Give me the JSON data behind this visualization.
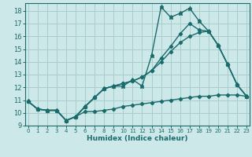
{
  "bg_color": "#cde8e8",
  "grid_color": "#a8cccc",
  "line_color": "#1a6b6b",
  "xlabel": "Humidex (Indice chaleur)",
  "xlim": [
    0,
    23
  ],
  "ylim": [
    9,
    18.6
  ],
  "yticks": [
    9,
    10,
    11,
    12,
    13,
    14,
    15,
    16,
    17,
    18
  ],
  "xticks": [
    0,
    1,
    2,
    3,
    4,
    5,
    6,
    7,
    8,
    9,
    10,
    11,
    12,
    13,
    14,
    15,
    16,
    17,
    18,
    19,
    20,
    21,
    22,
    23
  ],
  "line_flat_x": [
    0,
    1,
    2,
    3,
    4,
    5,
    6,
    7,
    8,
    9,
    10,
    11,
    12,
    13,
    14,
    15,
    16,
    17,
    18,
    19,
    20,
    21,
    22,
    23
  ],
  "line_flat_y": [
    10.9,
    10.3,
    10.2,
    10.2,
    9.4,
    9.7,
    10.1,
    10.1,
    10.2,
    10.3,
    10.5,
    10.6,
    10.7,
    10.8,
    10.9,
    11.0,
    11.1,
    11.2,
    11.3,
    11.3,
    11.4,
    11.4,
    11.4,
    11.3
  ],
  "line_spike_x": [
    0,
    1,
    2,
    3,
    4,
    5,
    6,
    7,
    8,
    9,
    10,
    11,
    12,
    13,
    14,
    15,
    16,
    17,
    18,
    19,
    20,
    21,
    22,
    23
  ],
  "line_spike_y": [
    10.9,
    10.3,
    10.2,
    10.2,
    9.4,
    9.7,
    10.5,
    11.2,
    11.9,
    12.1,
    12.1,
    12.6,
    12.1,
    14.5,
    18.3,
    17.5,
    17.8,
    18.2,
    17.2,
    16.4,
    15.3,
    13.8,
    12.2,
    11.3
  ],
  "line_smooth_x": [
    0,
    1,
    2,
    3,
    4,
    5,
    6,
    7,
    8,
    9,
    10,
    11,
    12,
    13,
    14,
    15,
    16,
    17,
    18,
    19,
    20,
    21,
    22,
    23
  ],
  "line_smooth_y": [
    10.9,
    10.3,
    10.2,
    10.2,
    9.4,
    9.7,
    10.5,
    11.2,
    11.9,
    12.1,
    12.3,
    12.5,
    12.8,
    13.3,
    14.3,
    15.2,
    16.2,
    17.0,
    16.5,
    16.4,
    15.3,
    13.8,
    12.2,
    11.3
  ],
  "line_diag_x": [
    0,
    1,
    2,
    3,
    4,
    5,
    6,
    7,
    8,
    9,
    10,
    11,
    12,
    13,
    14,
    15,
    16,
    17,
    18,
    19,
    20,
    21,
    22,
    23
  ],
  "line_diag_y": [
    10.9,
    10.3,
    10.2,
    10.2,
    9.4,
    9.7,
    10.5,
    11.2,
    11.9,
    12.1,
    12.3,
    12.5,
    12.8,
    13.3,
    14.0,
    14.8,
    15.5,
    16.0,
    16.3,
    16.4,
    15.3,
    13.8,
    12.2,
    11.3
  ]
}
